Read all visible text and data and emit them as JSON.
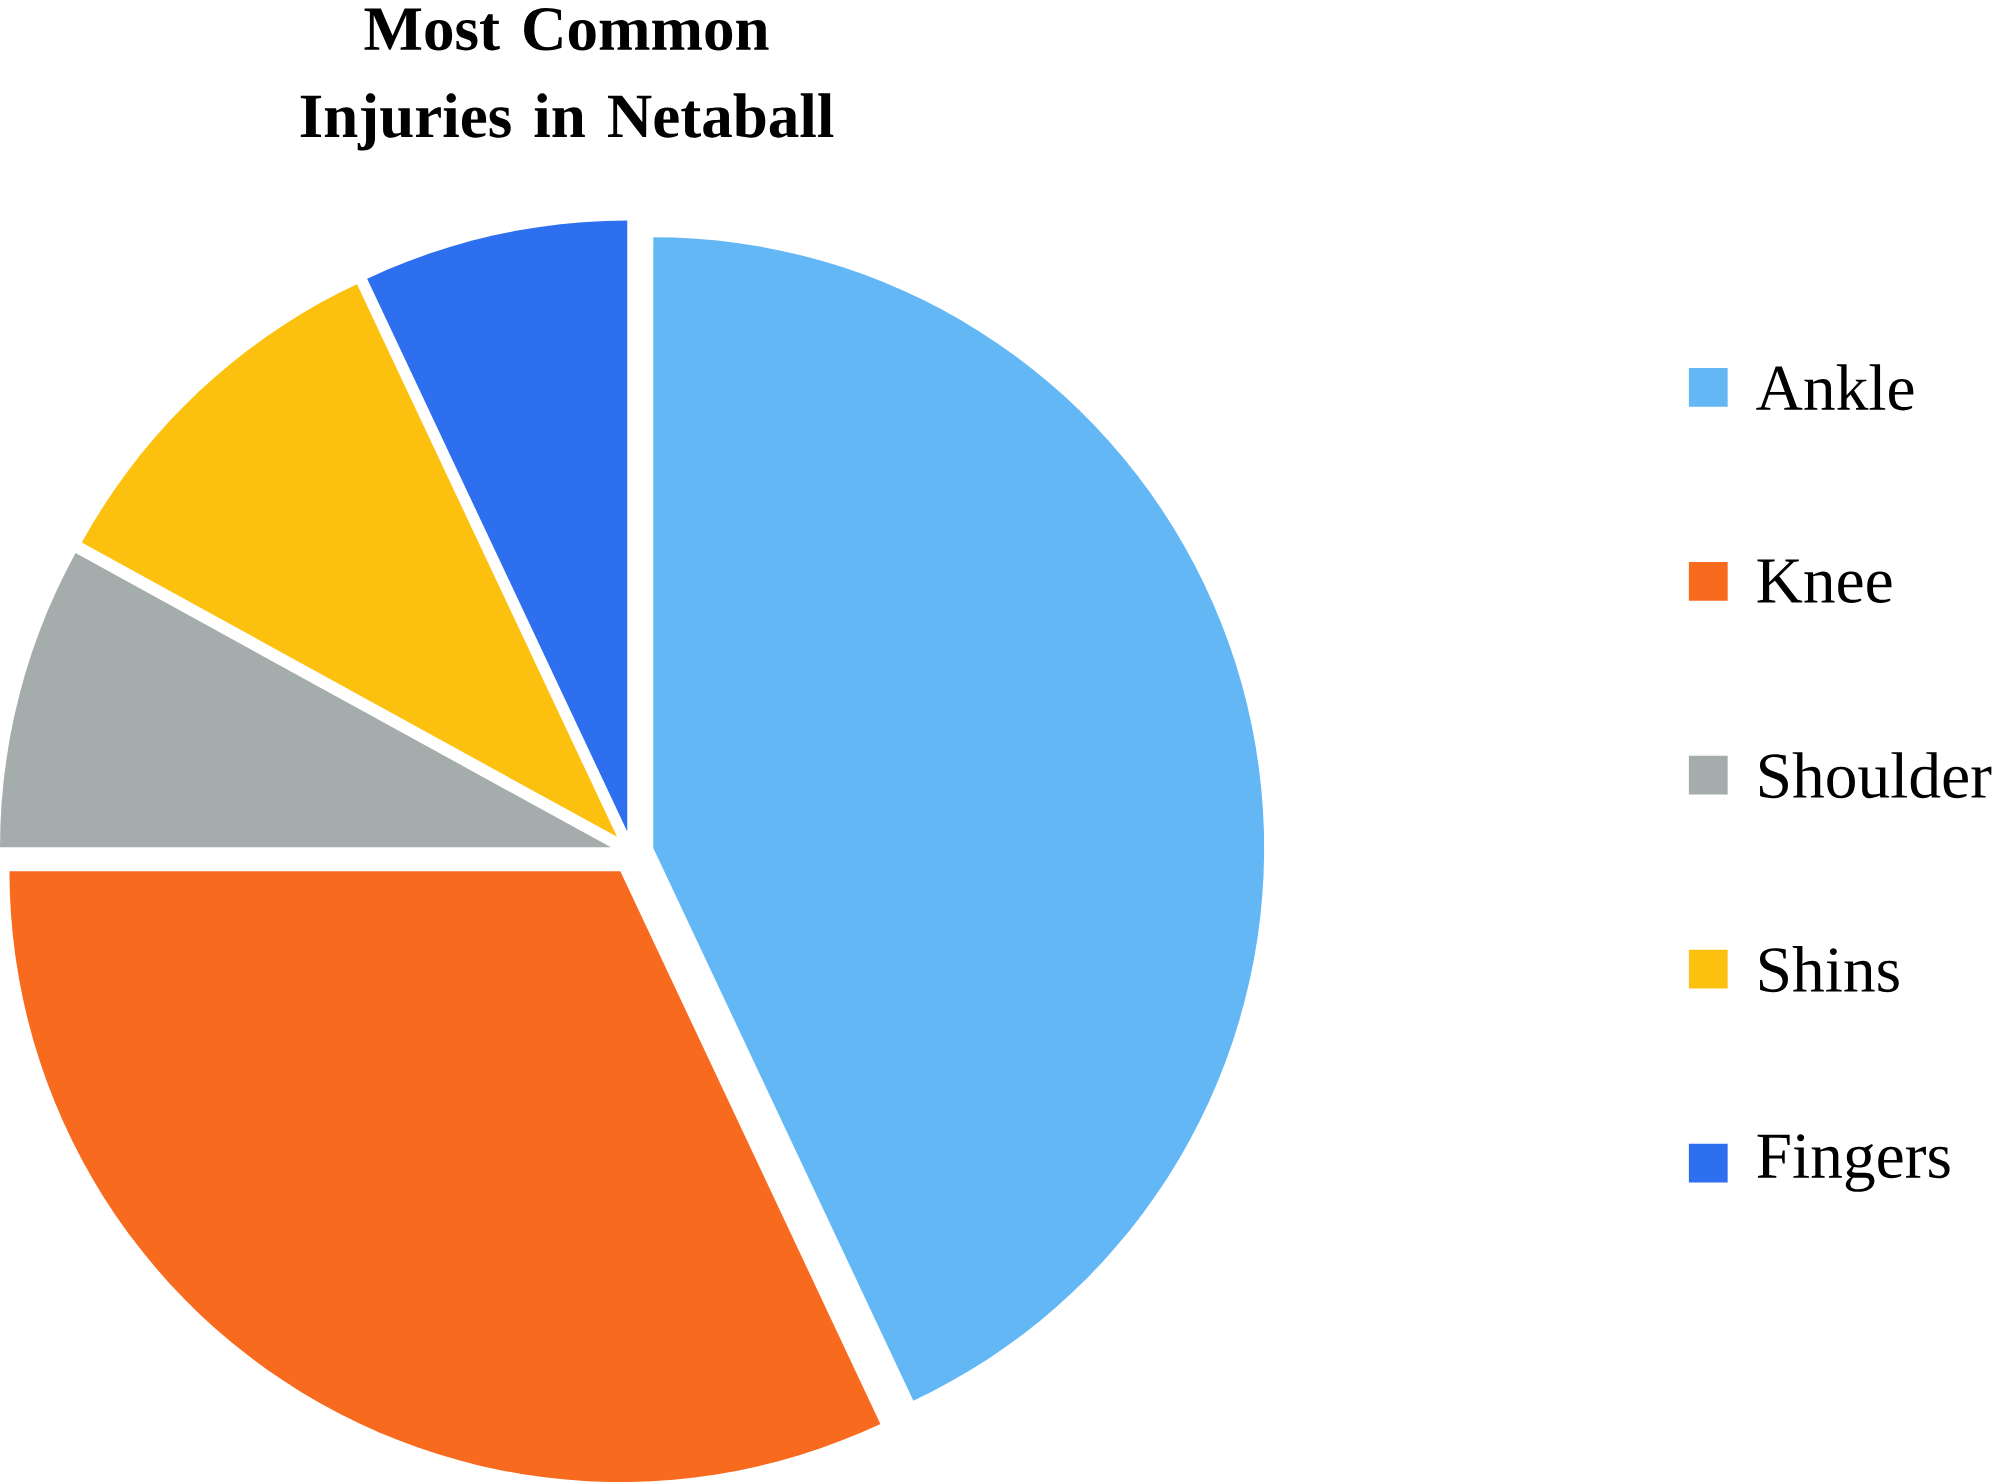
{
  "chart_data": {
    "type": "pie",
    "title": "Most Common Injuries in Netaball",
    "categories": [
      "Ankle",
      "Knee",
      "Shoulder",
      "Shins",
      "Fingers"
    ],
    "values": [
      43,
      32,
      8,
      10,
      7
    ],
    "colors": [
      "#63b7f5",
      "#f86a1e",
      "#a4acac",
      "#fcc00f",
      "#2e6fef"
    ],
    "legend": "right"
  }
}
